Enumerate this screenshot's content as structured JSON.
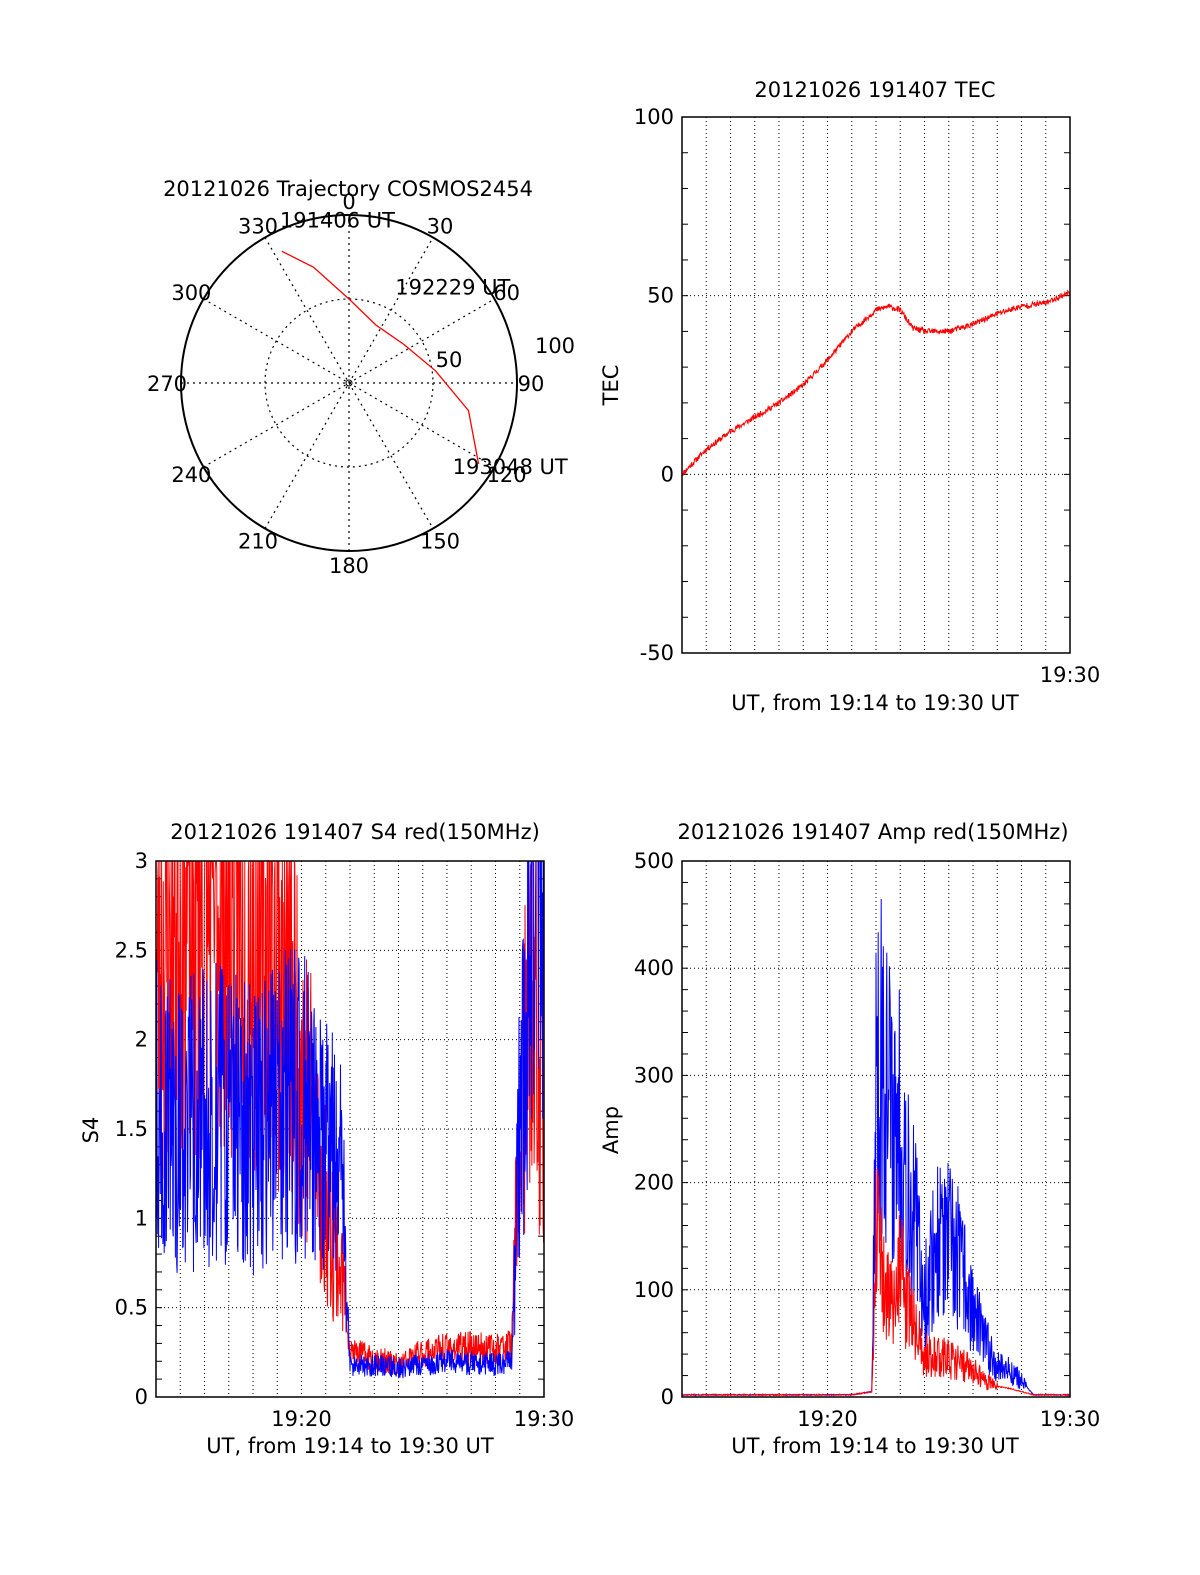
{
  "chart_data": [
    {
      "type": "polar",
      "title": "20121026 Trajectory COSMOS2454",
      "azimuth_labels": [
        "0",
        "30",
        "60",
        "90",
        "120",
        "150",
        "180",
        "210",
        "240",
        "270",
        "300",
        "330"
      ],
      "radial_labels": [
        "50",
        "100"
      ],
      "grid": true,
      "series": [
        {
          "color": "#ff0000",
          "points": [
            {
              "az": 333,
              "r": 88
            },
            {
              "az": 343,
              "r": 72
            },
            {
              "az": 360,
              "r": 50
            },
            {
              "az": 25,
              "r": 38
            },
            {
              "az": 55,
              "r": 40
            },
            {
              "az": 82,
              "r": 52
            },
            {
              "az": 103,
              "r": 73
            },
            {
              "az": 122,
              "r": 91
            }
          ]
        }
      ],
      "annotations": [
        {
          "text": "191406 UT",
          "az": 333,
          "r": 88
        },
        {
          "text": "192229 UT",
          "az": 45,
          "r": 60
        },
        {
          "text": "193048 UT",
          "az": 122,
          "r": 91
        }
      ]
    },
    {
      "type": "line",
      "title": "20121026 191407 TEC",
      "xlabel": "UT, from 19:14 to 19:30 UT",
      "ylabel": "TEC",
      "xlim": [
        "19:14",
        "19:30"
      ],
      "ylim": [
        -50,
        100
      ],
      "yticks": [
        -50,
        0,
        50,
        100
      ],
      "xticklabels": [
        {
          "x": "19:30",
          "label": "19:30"
        }
      ],
      "grid": true,
      "series": [
        {
          "color": "#ff0000",
          "x": [
            "19:14",
            "19:15",
            "19:16",
            "19:17",
            "19:18",
            "19:19",
            "19:20",
            "19:21",
            "19:22",
            "19:22:30",
            "19:23",
            "19:23:30",
            "19:24",
            "19:25",
            "19:26",
            "19:27",
            "19:28",
            "19:29",
            "19:30"
          ],
          "y": [
            0,
            7,
            12,
            16,
            20,
            25,
            32,
            40,
            46,
            47,
            46,
            41,
            40,
            40,
            42,
            45,
            47,
            48,
            51
          ]
        }
      ]
    },
    {
      "type": "line",
      "title": "20121026 191407 S4 red(150MHz)",
      "xlabel": "UT, from 19:14 to 19:30 UT",
      "ylabel": "S4",
      "xlim": [
        "19:14",
        "19:30"
      ],
      "ylim": [
        0,
        3
      ],
      "yticks": [
        0,
        0.5,
        1,
        1.5,
        2,
        2.5,
        3
      ],
      "xticklabels": [
        {
          "x": "19:20",
          "label": "19:20"
        },
        {
          "x": "19:30",
          "label": "19:30"
        }
      ],
      "grid": true,
      "series": [
        {
          "color": "#ff0000",
          "x": [
            "19:14",
            "19:15",
            "19:16",
            "19:17",
            "19:18",
            "19:19",
            "19:20",
            "19:20:30",
            "19:21",
            "19:21:30",
            "19:21:50",
            "19:22",
            "19:23",
            "19:24",
            "19:25",
            "19:26",
            "19:27",
            "19:28",
            "19:28:40",
            "19:29",
            "19:29:30",
            "19:30"
          ],
          "y": [
            2.3,
            2.8,
            2.7,
            2.9,
            2.6,
            2.5,
            1.9,
            1.5,
            1.1,
            0.8,
            0.55,
            0.25,
            0.22,
            0.18,
            0.25,
            0.27,
            0.28,
            0.27,
            0.3,
            1.5,
            2.2,
            1.7
          ]
        },
        {
          "color": "#0000ff",
          "x": [
            "19:14",
            "19:15",
            "19:16",
            "19:17",
            "19:18",
            "19:19",
            "19:20",
            "19:21",
            "19:21:40",
            "19:22",
            "19:23",
            "19:24",
            "19:25",
            "19:26",
            "19:27",
            "19:28",
            "19:28:40",
            "19:29",
            "19:29:30",
            "19:30"
          ],
          "y": [
            1.6,
            1.5,
            1.6,
            1.55,
            1.5,
            1.6,
            1.65,
            1.4,
            1.2,
            0.17,
            0.18,
            0.16,
            0.18,
            0.2,
            0.19,
            0.18,
            0.2,
            1.5,
            2.9,
            3.0
          ]
        }
      ]
    },
    {
      "type": "line",
      "title": "20121026 191407 Amp red(150MHz)",
      "xlabel": "UT, from 19:14 to 19:30 UT",
      "ylabel": "Amp",
      "xlim": [
        "19:14",
        "19:30"
      ],
      "ylim": [
        0,
        500
      ],
      "yticks": [
        0,
        100,
        200,
        300,
        400,
        500
      ],
      "xticklabels": [
        {
          "x": "19:20",
          "label": "19:20"
        },
        {
          "x": "19:30",
          "label": "19:30"
        }
      ],
      "grid": true,
      "series": [
        {
          "color": "#0000ff",
          "x": [
            "19:14",
            "19:15",
            "19:17",
            "19:19",
            "19:21",
            "19:21:50",
            "19:22",
            "19:22:20",
            "19:22:40",
            "19:23",
            "19:23:20",
            "19:23:40",
            "19:24",
            "19:24:20",
            "19:24:40",
            "19:25",
            "19:25:20",
            "19:25:40",
            "19:26",
            "19:26:30",
            "19:27",
            "19:27:30",
            "19:28",
            "19:28:30",
            "19:30"
          ],
          "y": [
            2,
            2,
            2,
            2,
            2,
            5,
            300,
            320,
            250,
            260,
            200,
            150,
            90,
            130,
            150,
            140,
            130,
            110,
            80,
            50,
            30,
            25,
            15,
            2,
            2
          ]
        },
        {
          "color": "#ff0000",
          "x": [
            "19:14",
            "19:15",
            "19:17",
            "19:19",
            "19:21",
            "19:21:50",
            "19:22",
            "19:22:20",
            "19:22:40",
            "19:23",
            "19:23:20",
            "19:23:40",
            "19:24",
            "19:24:30",
            "19:25",
            "19:25:30",
            "19:26",
            "19:26:30",
            "19:27",
            "19:27:30",
            "19:28",
            "19:28:30",
            "19:30"
          ],
          "y": [
            2,
            2,
            2,
            2,
            2,
            5,
            150,
            100,
            80,
            120,
            80,
            60,
            40,
            40,
            35,
            30,
            25,
            15,
            10,
            8,
            5,
            2,
            2
          ]
        }
      ]
    }
  ]
}
